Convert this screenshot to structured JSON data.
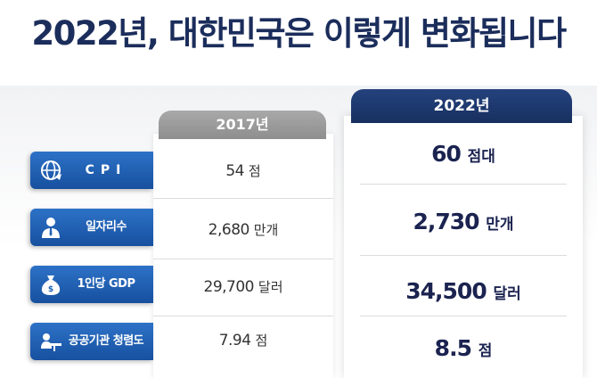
{
  "headline": "2022년, 대한민국은 이렇게 변화됩니다",
  "columns": {
    "col_2017": "2017년",
    "col_2022": "2022년"
  },
  "rows": [
    {
      "label": "CPI",
      "icon": "globe-icon",
      "v2017": "54",
      "u2017": "점",
      "v2022": "60",
      "u2022": "점대"
    },
    {
      "label": "일자리수",
      "icon": "worker-icon",
      "v2017": "2,680",
      "u2017": "만개",
      "v2022": "2,730",
      "u2022": "만개"
    },
    {
      "label": "1인당 GDP",
      "icon": "money-bag-icon",
      "v2017": "29,700",
      "u2017": "달러",
      "v2022": "34,500",
      "u2022": "달러"
    },
    {
      "label": "공공기관 청렴도",
      "icon": "desk-person-icon",
      "v2017": "7.94",
      "u2017": "점",
      "v2022": "8.5",
      "u2022": "점"
    }
  ],
  "colors": {
    "headline": "#1b2d5b",
    "label_blue": "#1f63b8",
    "tab_2017": "#9b9b9b",
    "tab_2022": "#1f3a70"
  }
}
